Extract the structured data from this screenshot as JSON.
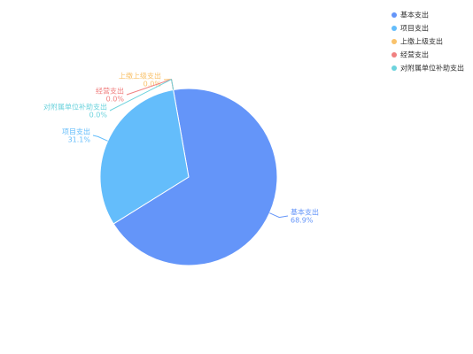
{
  "chart_data": {
    "type": "pie",
    "categories": [
      "基本支出",
      "项目支出",
      "上缴上级支出",
      "经营支出",
      "对附属单位补助支出"
    ],
    "values": [
      68.9,
      31.1,
      0.0,
      0.0,
      0.0
    ],
    "value_labels": [
      "68.9%",
      "31.1%",
      "0.0%",
      "0.0%",
      "0.0%"
    ],
    "colors": [
      "#6495f9",
      "#64bdfb",
      "#f9c26b",
      "#f08080",
      "#6dd3dd"
    ],
    "legend": "top-right"
  }
}
